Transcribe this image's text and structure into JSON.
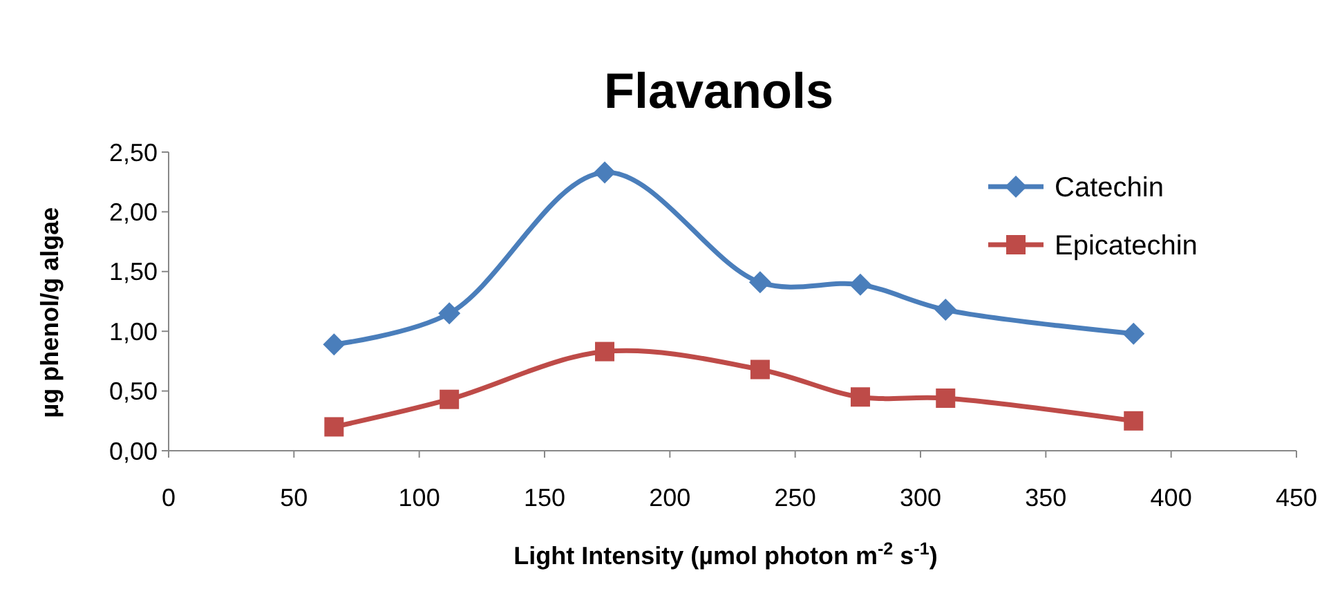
{
  "chart_data": {
    "type": "line",
    "title": "Flavanols",
    "xlabel": "Light Intensity (µmol photon m$^{-2}$ s$^{-1}$)",
    "ylabel": "µg phenol/g algae",
    "series": [
      {
        "name": "Catechin",
        "color": "#4a7ebb",
        "marker": "diamond",
        "x": [
          66,
          112,
          174,
          236,
          276,
          310,
          385
        ],
        "values": [
          0.89,
          1.15,
          2.33,
          1.41,
          1.39,
          1.18,
          0.98
        ]
      },
      {
        "name": "Epicatechin",
        "color": "#be4b48",
        "marker": "square",
        "x": [
          66,
          112,
          174,
          236,
          276,
          310,
          385
        ],
        "values": [
          0.2,
          0.43,
          0.83,
          0.68,
          0.45,
          0.44,
          0.25
        ]
      }
    ],
    "xlim": [
      0,
      450
    ],
    "xticks": [
      0,
      50,
      100,
      150,
      200,
      250,
      300,
      350,
      400,
      450
    ],
    "ylim": [
      0,
      2.5
    ],
    "yticks": [
      {
        "value": 0,
        "label": "0,00"
      },
      {
        "value": 0.5,
        "label": "0,50"
      },
      {
        "value": 1,
        "label": "1,00"
      },
      {
        "value": 1.5,
        "label": "1,50"
      },
      {
        "value": 2,
        "label": "2,00"
      },
      {
        "value": 2.5,
        "label": "2,50"
      }
    ],
    "grid": false,
    "legend": "top right"
  }
}
